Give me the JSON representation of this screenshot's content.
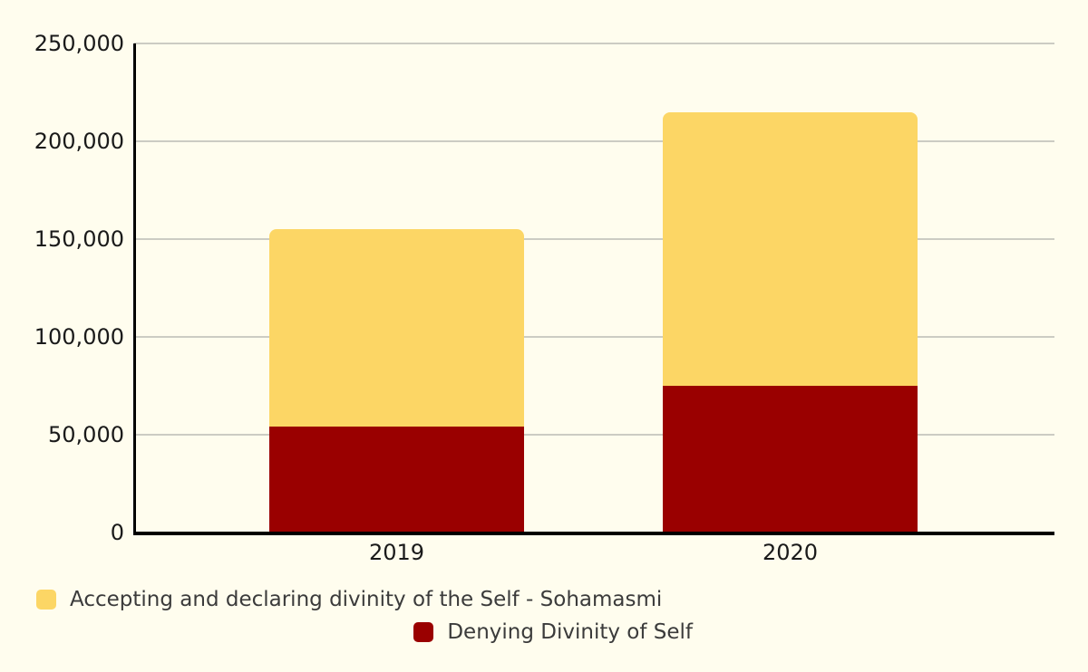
{
  "page": {
    "background_color": "#FFFDEE"
  },
  "chart_data": {
    "type": "bar",
    "stacked": true,
    "orientation": "vertical",
    "categories": [
      "2019",
      "2020"
    ],
    "series": [
      {
        "name": "Denying Divinity of Self",
        "color": "#9A0000",
        "stack_position": "bottom",
        "values": [
          54000,
          75000
        ]
      },
      {
        "name": "Accepting and declaring divinity of the Self - Sohamasmi",
        "color": "#FCD665",
        "stack_position": "top",
        "values": [
          101000,
          140000
        ]
      }
    ],
    "ylim": [
      0,
      250000
    ],
    "ytick_step": 50000,
    "yticks": [
      {
        "value": 0,
        "label": "0"
      },
      {
        "value": 50000,
        "label": "50,000"
      },
      {
        "value": 100000,
        "label": "100,000"
      },
      {
        "value": 150000,
        "label": "150,000"
      },
      {
        "value": 200000,
        "label": "200,000"
      },
      {
        "value": 250000,
        "label": "250,000"
      }
    ],
    "grid": "horizontal",
    "legend_position": "bottom",
    "legend": [
      {
        "label": "Accepting and declaring divinity of the Self - Sohamasmi",
        "color": "#FCD665"
      },
      {
        "label": "Denying Divinity of Self",
        "color": "#9A0000"
      }
    ],
    "colors": {
      "background": "#FFFDEE",
      "gridline": "#CCCCC3",
      "axis_line": "#000000",
      "axis_label_text": "#1A1A1A",
      "legend_text": "#3B3B3B"
    }
  }
}
